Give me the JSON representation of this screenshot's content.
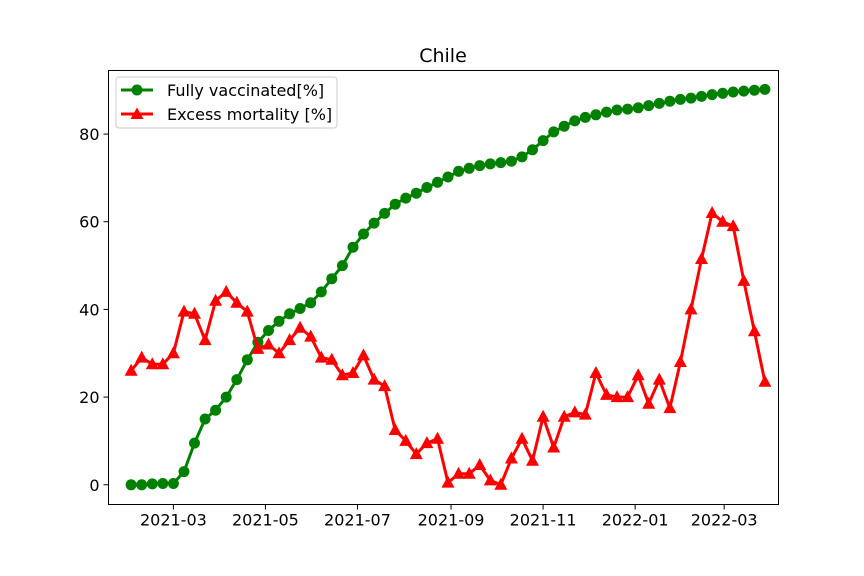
{
  "chart_data": {
    "type": "line",
    "title": "Chile",
    "xlabel": "",
    "ylabel": "",
    "xlim": [
      "2021-01-17",
      "2022-04-06"
    ],
    "ylim": [
      -4.5,
      94.5
    ],
    "x_ticks": [
      "2021-03",
      "2021-05",
      "2021-07",
      "2021-09",
      "2021-11",
      "2022-01",
      "2022-03"
    ],
    "y_ticks": [
      0,
      20,
      40,
      60,
      80
    ],
    "grid": false,
    "legend_position": "top-left",
    "series": [
      {
        "name": "Fully vaccinated[%]",
        "color": "#008000",
        "marker": "circle",
        "x": [
          "2021-02-01",
          "2021-02-08",
          "2021-02-15",
          "2021-02-22",
          "2021-03-01",
          "2021-03-08",
          "2021-03-15",
          "2021-03-22",
          "2021-03-29",
          "2021-04-05",
          "2021-04-12",
          "2021-04-19",
          "2021-04-26",
          "2021-05-03",
          "2021-05-10",
          "2021-05-17",
          "2021-05-24",
          "2021-05-31",
          "2021-06-07",
          "2021-06-14",
          "2021-06-21",
          "2021-06-28",
          "2021-07-05",
          "2021-07-12",
          "2021-07-19",
          "2021-07-26",
          "2021-08-02",
          "2021-08-09",
          "2021-08-16",
          "2021-08-23",
          "2021-08-30",
          "2021-09-06",
          "2021-09-13",
          "2021-09-20",
          "2021-09-27",
          "2021-10-04",
          "2021-10-11",
          "2021-10-18",
          "2021-10-25",
          "2021-11-01",
          "2021-11-08",
          "2021-11-15",
          "2021-11-22",
          "2021-11-29",
          "2021-12-06",
          "2021-12-13",
          "2021-12-20",
          "2021-12-27",
          "2022-01-03",
          "2022-01-10",
          "2022-01-17",
          "2022-01-24",
          "2022-01-31",
          "2022-02-07",
          "2022-02-14",
          "2022-02-21",
          "2022-02-28",
          "2022-03-07",
          "2022-03-14",
          "2022-03-21",
          "2022-03-28"
        ],
        "values": [
          0,
          0,
          0.2,
          0.3,
          0.3,
          3,
          9.5,
          15,
          17,
          20,
          24,
          28.5,
          32.5,
          35.2,
          37.3,
          39,
          40.2,
          41.5,
          44,
          47,
          50,
          54.2,
          57.2,
          59.7,
          61.9,
          64,
          65.4,
          66.5,
          67.8,
          69,
          70.2,
          71.5,
          72.2,
          72.8,
          73.2,
          73.5,
          73.8,
          74.8,
          76.4,
          78.5,
          80.5,
          81.8,
          83,
          83.8,
          84.4,
          85,
          85.5,
          85.7,
          86,
          86.5,
          87,
          87.5,
          87.9,
          88.2,
          88.6,
          89,
          89.3,
          89.6,
          89.8,
          90,
          90.2
        ]
      },
      {
        "name": "Excess mortality [%]",
        "color": "#ff0000",
        "marker": "triangle",
        "x": [
          "2021-02-01",
          "2021-02-08",
          "2021-02-15",
          "2021-02-22",
          "2021-03-01",
          "2021-03-08",
          "2021-03-15",
          "2021-03-22",
          "2021-03-29",
          "2021-04-05",
          "2021-04-12",
          "2021-04-19",
          "2021-04-26",
          "2021-05-03",
          "2021-05-10",
          "2021-05-17",
          "2021-05-24",
          "2021-05-31",
          "2021-06-07",
          "2021-06-14",
          "2021-06-21",
          "2021-06-28",
          "2021-07-05",
          "2021-07-12",
          "2021-07-19",
          "2021-07-26",
          "2021-08-02",
          "2021-08-09",
          "2021-08-16",
          "2021-08-23",
          "2021-08-30",
          "2021-09-06",
          "2021-09-13",
          "2021-09-20",
          "2021-09-27",
          "2021-10-04",
          "2021-10-11",
          "2021-10-18",
          "2021-10-25",
          "2021-11-01",
          "2021-11-08",
          "2021-11-15",
          "2021-11-22",
          "2021-11-29",
          "2021-12-06",
          "2021-12-13",
          "2021-12-20",
          "2021-12-27",
          "2022-01-03",
          "2022-01-10",
          "2022-01-17",
          "2022-01-24",
          "2022-01-31",
          "2022-02-07",
          "2022-02-14",
          "2022-02-21",
          "2022-02-28",
          "2022-03-07",
          "2022-03-14",
          "2022-03-21",
          "2022-03-28"
        ],
        "values": [
          26,
          29,
          27.5,
          27.5,
          30,
          39.5,
          39,
          33,
          42,
          44,
          41.5,
          39.5,
          31,
          32,
          30,
          33,
          35.8,
          33.8,
          29,
          28.5,
          25,
          25.5,
          29.5,
          24,
          22.5,
          12.5,
          10,
          7,
          9.5,
          10.5,
          0.5,
          2.5,
          2.5,
          4.5,
          1,
          0,
          6,
          10.5,
          5.5,
          15.5,
          8.5,
          15.5,
          16.5,
          16,
          25.5,
          20.5,
          20,
          20,
          25,
          18.5,
          24,
          17.5,
          28,
          40,
          51.5,
          62,
          60,
          59,
          46.5,
          35,
          23.5
        ]
      }
    ]
  }
}
